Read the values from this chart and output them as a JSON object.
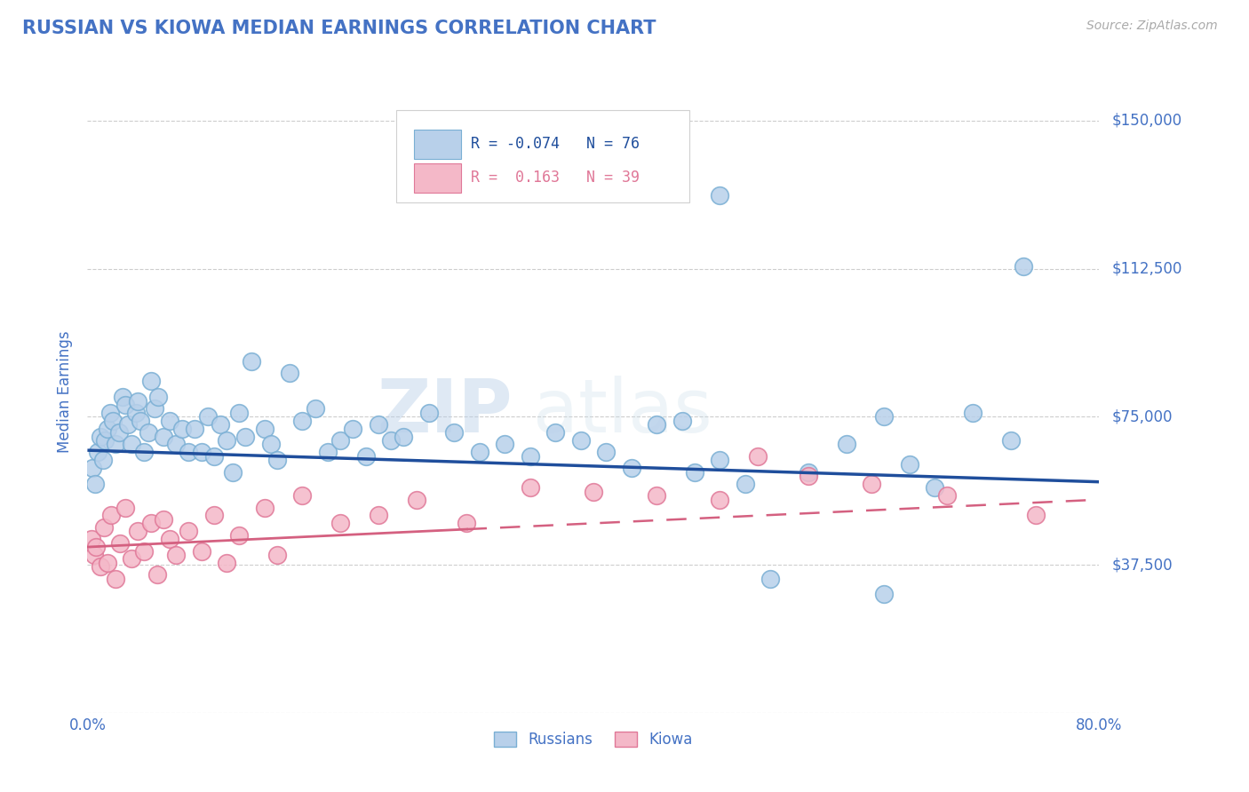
{
  "title": "RUSSIAN VS KIOWA MEDIAN EARNINGS CORRELATION CHART",
  "source_text": "Source: ZipAtlas.com",
  "ylabel": "Median Earnings",
  "xlim": [
    0.0,
    80.0
  ],
  "ylim": [
    0,
    162500
  ],
  "yticks": [
    0,
    37500,
    75000,
    112500,
    150000
  ],
  "ytick_labels": [
    "",
    "$37,500",
    "$75,000",
    "$112,500",
    "$150,000"
  ],
  "xticks": [
    0,
    80
  ],
  "xtick_labels": [
    "0.0%",
    "80.0%"
  ],
  "background_color": "#ffffff",
  "grid_color": "#c8c8c8",
  "title_color": "#4472c4",
  "axis_color": "#4472c4",
  "russians_color": "#b8d0ea",
  "russians_edge_color": "#7aafd4",
  "kiowa_color": "#f4b8c8",
  "kiowa_edge_color": "#e07898",
  "russians_line_color": "#1f4e9c",
  "kiowa_line_color": "#d46080",
  "legend_R_russian": "-0.074",
  "legend_N_russian": "76",
  "legend_R_kiowa": "0.163",
  "legend_N_kiowa": "39",
  "watermark_zip": "ZIP",
  "watermark_atlas": "atlas",
  "russians_x": [
    0.4,
    0.6,
    0.8,
    1.0,
    1.2,
    1.4,
    1.6,
    1.8,
    2.0,
    2.2,
    2.5,
    2.8,
    3.0,
    3.2,
    3.5,
    3.8,
    4.0,
    4.2,
    4.5,
    4.8,
    5.0,
    5.3,
    5.6,
    6.0,
    6.5,
    7.0,
    7.5,
    8.0,
    8.5,
    9.0,
    9.5,
    10.0,
    10.5,
    11.0,
    11.5,
    12.0,
    12.5,
    13.0,
    14.0,
    14.5,
    15.0,
    16.0,
    17.0,
    18.0,
    19.0,
    20.0,
    21.0,
    22.0,
    23.0,
    24.0,
    25.0,
    27.0,
    29.0,
    31.0,
    33.0,
    35.0,
    37.0,
    39.0,
    41.0,
    43.0,
    45.0,
    47.0,
    48.0,
    50.0,
    52.0,
    54.0,
    57.0,
    60.0,
    63.0,
    65.0,
    67.0,
    70.0,
    73.0,
    50.0,
    74.0,
    63.0
  ],
  "russians_y": [
    62000,
    58000,
    66000,
    70000,
    64000,
    69000,
    72000,
    76000,
    74000,
    68000,
    71000,
    80000,
    78000,
    73000,
    68000,
    76000,
    79000,
    74000,
    66000,
    71000,
    84000,
    77000,
    80000,
    70000,
    74000,
    68000,
    72000,
    66000,
    72000,
    66000,
    75000,
    65000,
    73000,
    69000,
    61000,
    76000,
    70000,
    89000,
    72000,
    68000,
    64000,
    86000,
    74000,
    77000,
    66000,
    69000,
    72000,
    65000,
    73000,
    69000,
    70000,
    76000,
    71000,
    66000,
    68000,
    65000,
    71000,
    69000,
    66000,
    62000,
    73000,
    74000,
    61000,
    64000,
    58000,
    34000,
    61000,
    68000,
    75000,
    63000,
    57000,
    76000,
    69000,
    131000,
    113000,
    30000
  ],
  "kiowa_x": [
    0.3,
    0.5,
    0.7,
    1.0,
    1.3,
    1.6,
    1.9,
    2.2,
    2.6,
    3.0,
    3.5,
    4.0,
    4.5,
    5.0,
    5.5,
    6.0,
    6.5,
    7.0,
    8.0,
    9.0,
    10.0,
    11.0,
    12.0,
    14.0,
    15.0,
    17.0,
    20.0,
    23.0,
    26.0,
    30.0,
    35.0,
    40.0,
    45.0,
    50.0,
    53.0,
    57.0,
    62.0,
    68.0,
    75.0
  ],
  "kiowa_y": [
    44000,
    40000,
    42000,
    37000,
    47000,
    38000,
    50000,
    34000,
    43000,
    52000,
    39000,
    46000,
    41000,
    48000,
    35000,
    49000,
    44000,
    40000,
    46000,
    41000,
    50000,
    38000,
    45000,
    52000,
    40000,
    55000,
    48000,
    50000,
    54000,
    48000,
    57000,
    56000,
    55000,
    54000,
    65000,
    60000,
    58000,
    55000,
    50000
  ],
  "kiowa_solid_xmax": 30.0,
  "russians_line_intercept": 66500,
  "russians_line_slope": -100,
  "kiowa_line_intercept": 42000,
  "kiowa_line_slope": 150
}
